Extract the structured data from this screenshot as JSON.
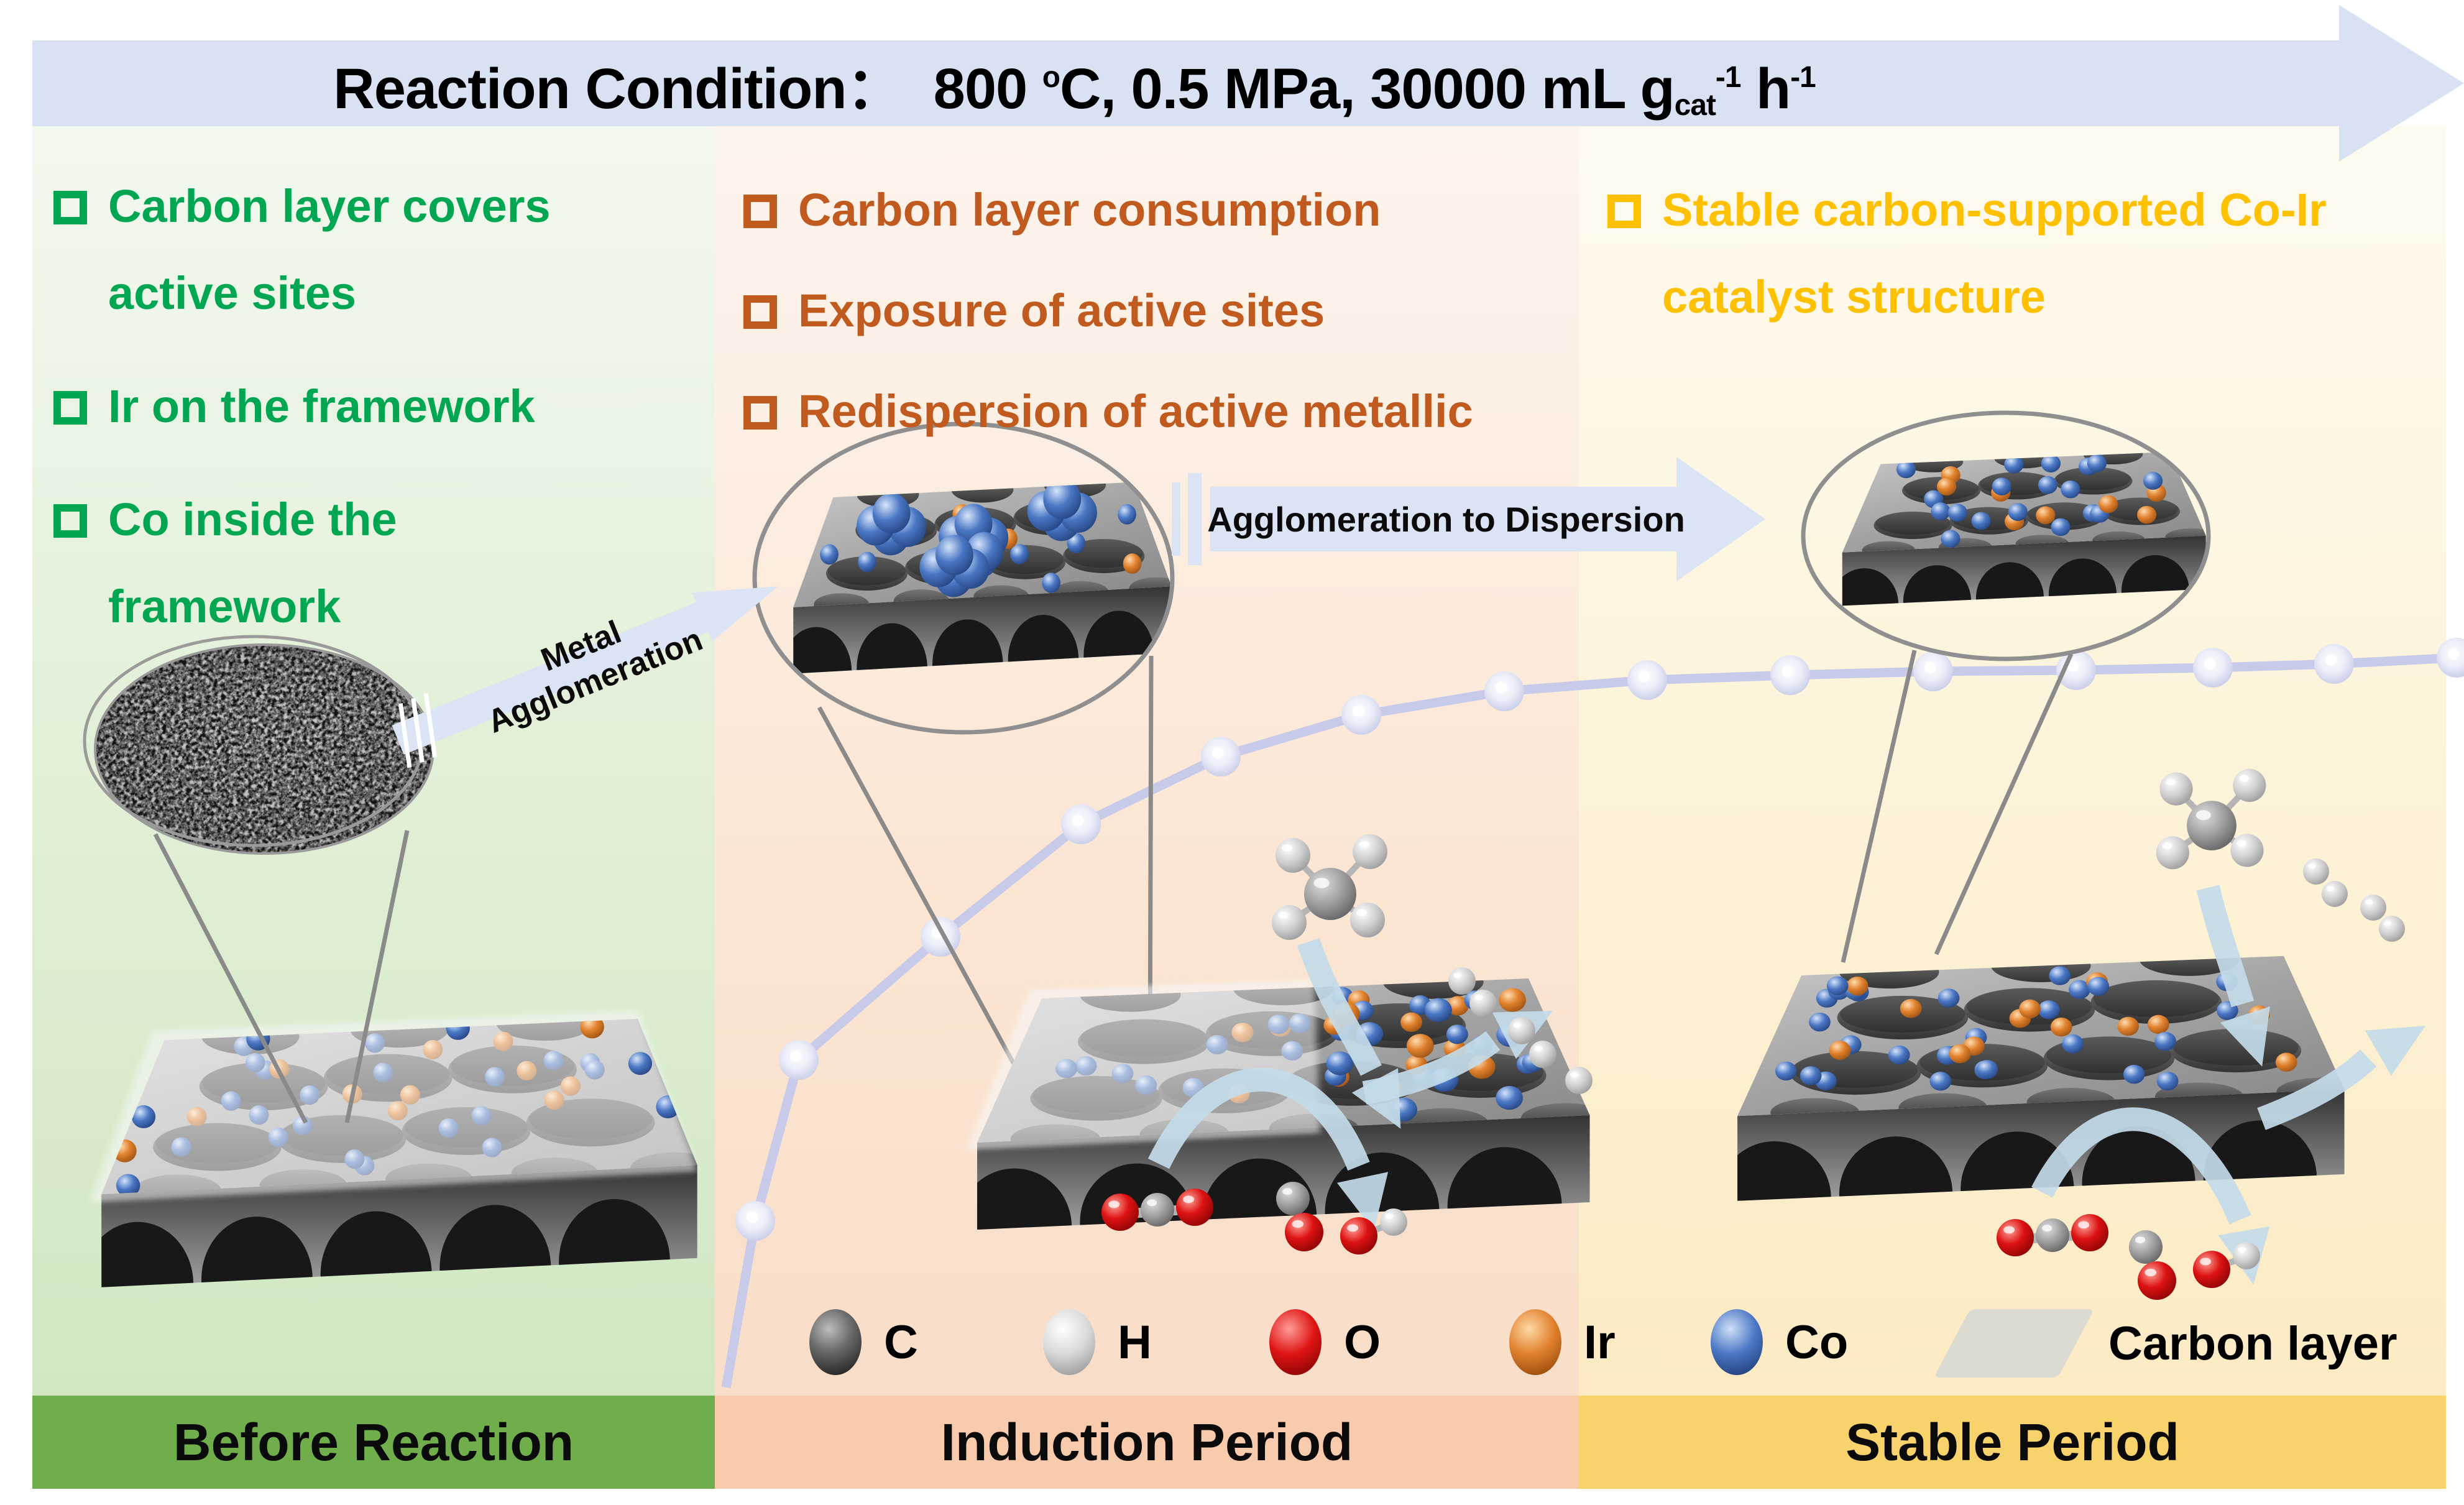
{
  "banner": {
    "bg_color": "#d9e2f3",
    "title": {
      "prefix": "Reaction Condition：  800 ",
      "sup1": "o",
      "mid1": "C, 0.5 MPa, 30000 mL g",
      "sub1": "cat",
      "sup2": "-1",
      "mid2": " h",
      "sup3": "-1"
    }
  },
  "panels": {
    "before": {
      "accent": "#00a651",
      "bullets": [
        "Carbon layer covers active sites",
        "Ir on the framework",
        "Co inside the framework"
      ],
      "footer": "Before Reaction",
      "footer_bg": "#6fae4b"
    },
    "induction": {
      "accent": "#c05a1f",
      "bullets": [
        "Carbon layer consumption",
        "Exposure of active sites",
        "Redispersion of active metallic"
      ],
      "footer": "Induction Period",
      "footer_bg": "#f8cbad"
    },
    "stable": {
      "accent": "#ffc000",
      "bullets": [
        "Stable carbon-supported Co-Ir catalyst structure"
      ],
      "footer": "Stable Period",
      "footer_bg": "#f8d26a"
    }
  },
  "arrows": {
    "metal_line1": "Metal",
    "metal_line2": "Agglomeration",
    "dispersion": "Agglomeration to Dispersion"
  },
  "legend": {
    "atoms": [
      {
        "symbol": "C",
        "color": "#4a4a4a"
      },
      {
        "symbol": "H",
        "color": "#c9c9c9"
      },
      {
        "symbol": "O",
        "color": "#d61212"
      },
      {
        "symbol": "Ir",
        "color": "#e0802c"
      },
      {
        "symbol": "Co",
        "color": "#4a77c4"
      }
    ],
    "carbon_layer": "Carbon layer"
  }
}
